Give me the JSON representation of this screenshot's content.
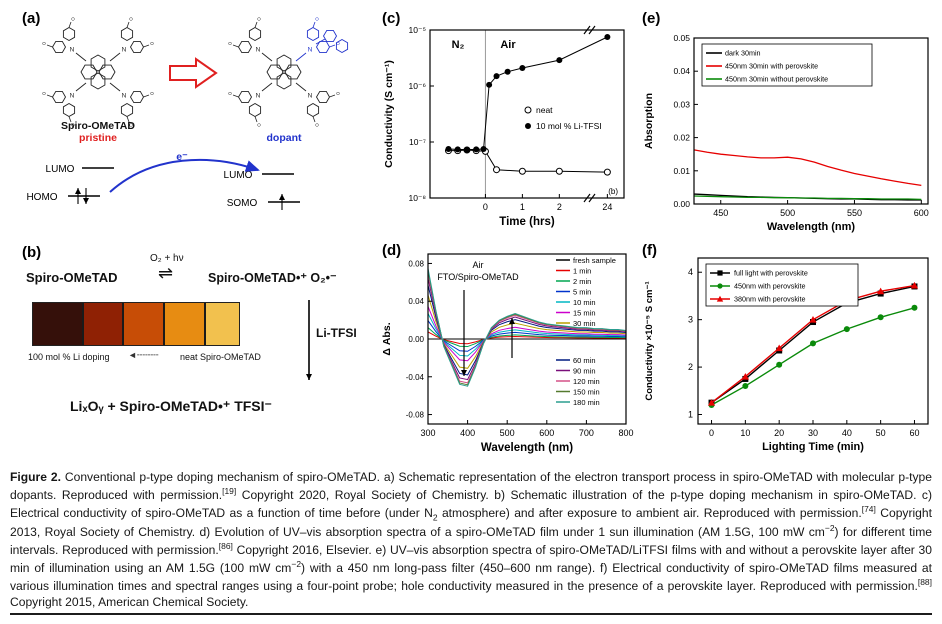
{
  "panels": {
    "a": {
      "label": "(a)",
      "molecule_name": "Spiro-OMeTAD",
      "pristine": "pristine",
      "dopant": "dopant",
      "electron": "e⁻",
      "lumo_left": "LUMO",
      "homo": "HOMO",
      "lumo_right": "LUMO",
      "somo": "SOMO"
    },
    "b": {
      "label": "(b)",
      "reactant": "Spiro-OMeTAD",
      "arrow_top": "O₂ + hν",
      "equilibrium": "⇌",
      "product": "Spiro-OMeTAD•⁺  O₂•⁻",
      "film_label_left": "100 mol % Li doping",
      "film_arrow": "◄╌╌╌╌",
      "film_label_right": "neat  Spiro-OMeTAD",
      "film_colors": [
        "#35100a",
        "#8f2104",
        "#c74d06",
        "#e78c12",
        "#f2c14e"
      ],
      "side_arrow_label": "Li-TFSI",
      "bottom_equation": "LiₓOᵧ  +  Spiro-OMeTAD•⁺ TFSI⁻"
    },
    "c": {
      "label": "(c)"
    },
    "d": {
      "label": "(d)"
    },
    "e": {
      "label": "(e)"
    },
    "f": {
      "label": "(f)"
    }
  },
  "chart_data": [
    {
      "id": "c",
      "type": "scatter-line",
      "xlabel": "Time (hrs)",
      "ylabel": "Conductivity (S cm⁻¹)",
      "yscale": "log",
      "ylim": [
        1e-08,
        1e-05
      ],
      "ytick_labels": [
        "10⁻⁸",
        "10⁻⁷",
        "10⁻⁶",
        "10⁻⁵"
      ],
      "xticks": [
        0,
        1,
        2,
        24
      ],
      "axis_break_after": 2,
      "region_labels": {
        "left": "N₂",
        "right": "Air"
      },
      "corner_label": "(b)",
      "series": [
        {
          "name": "neat",
          "marker": "circle-open",
          "color": "#000000",
          "x": [
            -1,
            -0.75,
            -0.5,
            -0.25,
            0,
            0.3,
            1,
            2,
            24
          ],
          "y": [
            7e-08,
            7e-08,
            7.2e-08,
            7e-08,
            6.8e-08,
            3.2e-08,
            3e-08,
            3e-08,
            2.9e-08
          ]
        },
        {
          "name": "10 mol % Li-TFSI",
          "marker": "circle-filled",
          "color": "#000000",
          "x": [
            -1,
            -0.75,
            -0.5,
            -0.25,
            -0.05,
            0.1,
            0.3,
            0.6,
            1,
            2,
            24
          ],
          "y": [
            7.5e-08,
            7.4e-08,
            7.3e-08,
            7.4e-08,
            7.5e-08,
            1.05e-06,
            1.5e-06,
            1.8e-06,
            2.1e-06,
            2.9e-06,
            7.5e-06
          ]
        }
      ]
    },
    {
      "id": "d",
      "type": "line",
      "annotation_air": "Air",
      "annotation_sample": "FTO/Spiro-OMeTAD",
      "xlabel": "Wavelength (nm)",
      "ylabel": "Δ Abs.",
      "xlim": [
        300,
        800
      ],
      "ylim": [
        -0.09,
        0.09
      ],
      "xticks": [
        300,
        400,
        500,
        600,
        700,
        800
      ],
      "yticks": [
        -0.08,
        -0.04,
        0,
        0.04,
        0.08
      ],
      "values_note": "series values = scale × base_curve at each wavelength",
      "wavelengths": [
        300,
        320,
        340,
        360,
        380,
        400,
        420,
        440,
        460,
        480,
        500,
        520,
        540,
        560,
        580,
        600,
        620,
        640,
        660,
        680,
        700,
        720,
        740,
        760,
        780,
        800
      ],
      "base_curve": [
        0.075,
        0.03,
        -0.008,
        -0.028,
        -0.048,
        -0.05,
        -0.03,
        -0.005,
        0.012,
        0.02,
        0.024,
        0.027,
        0.024,
        0.021,
        0.018,
        0.016,
        0.015,
        0.014,
        0.013,
        0.012,
        0.012,
        0.011,
        0.011,
        0.01,
        0.01,
        0.009
      ],
      "series": [
        {
          "name": "fresh sample",
          "color": "#000000",
          "scale": 0.0
        },
        {
          "name": "1 min",
          "color": "#e60000",
          "scale": 0.1
        },
        {
          "name": "2 min",
          "color": "#00a650",
          "scale": 0.16
        },
        {
          "name": "5 min",
          "color": "#0033cc",
          "scale": 0.26
        },
        {
          "name": "10 min",
          "color": "#00b7c3",
          "scale": 0.36
        },
        {
          "name": "15 min",
          "color": "#cc00cc",
          "scale": 0.46
        },
        {
          "name": "30 min",
          "color": "#b8a000",
          "scale": 0.62
        },
        {
          "name": "60 min",
          "color": "#001a80",
          "scale": 0.76
        },
        {
          "name": "90 min",
          "color": "#7a0f7a",
          "scale": 0.86
        },
        {
          "name": "120 min",
          "color": "#d45087",
          "scale": 0.93
        },
        {
          "name": "150 min",
          "color": "#557a2e",
          "scale": 0.97
        },
        {
          "name": "180 min",
          "color": "#2a9d8f",
          "scale": 1.0
        }
      ]
    },
    {
      "id": "e",
      "type": "line",
      "xlabel": "Wavelength (nm)",
      "ylabel": "Absorption",
      "xlim": [
        430,
        605
      ],
      "ylim": [
        0,
        0.05
      ],
      "xticks": [
        450,
        500,
        550,
        600
      ],
      "yticks": [
        0,
        0.01,
        0.02,
        0.03,
        0.04,
        0.05
      ],
      "x": [
        430,
        440,
        450,
        460,
        470,
        480,
        490,
        500,
        510,
        520,
        530,
        540,
        550,
        560,
        570,
        580,
        590,
        600
      ],
      "series": [
        {
          "name": "dark 30min",
          "color": "#000000",
          "values": [
            0.003,
            0.0028,
            0.0026,
            0.0024,
            0.0022,
            0.0021,
            0.002,
            0.0019,
            0.0018,
            0.0017,
            0.0016,
            0.0015,
            0.0015,
            0.0014,
            0.0013,
            0.0013,
            0.0012,
            0.0012
          ]
        },
        {
          "name": "450nm 30min with perovskite",
          "color": "#e60000",
          "values": [
            0.0163,
            0.0156,
            0.015,
            0.0146,
            0.0142,
            0.0139,
            0.0139,
            0.0141,
            0.0136,
            0.0126,
            0.0113,
            0.0102,
            0.0092,
            0.0084,
            0.0076,
            0.0069,
            0.0062,
            0.0056
          ]
        },
        {
          "name": "450nm 30min without perovskite",
          "color": "#0a8a0a",
          "values": [
            0.0024,
            0.0023,
            0.0022,
            0.0021,
            0.002,
            0.002,
            0.0019,
            0.0019,
            0.0018,
            0.0018,
            0.0017,
            0.0017,
            0.0016,
            0.0016,
            0.0015,
            0.0015,
            0.0015,
            0.0014
          ]
        }
      ]
    },
    {
      "id": "f",
      "type": "scatter-line",
      "xlabel": "Lighting Time (min)",
      "ylabel": "Conductivity ×10⁻⁵ S cm⁻¹",
      "xlim": [
        -4,
        64
      ],
      "ylim": [
        0.8,
        4.3
      ],
      "xticks": [
        0,
        10,
        20,
        30,
        40,
        50,
        60
      ],
      "yticks": [
        1,
        2,
        3,
        4
      ],
      "x": [
        0,
        10,
        20,
        30,
        40,
        50,
        60
      ],
      "series": [
        {
          "name": "full light with perovskite",
          "color": "#000000",
          "marker": "square",
          "values": [
            1.25,
            1.75,
            2.35,
            2.95,
            3.35,
            3.55,
            3.7
          ]
        },
        {
          "name": "450nm with perovskite",
          "color": "#0a8a0a",
          "marker": "circle",
          "values": [
            1.2,
            1.6,
            2.05,
            2.5,
            2.8,
            3.05,
            3.25
          ]
        },
        {
          "name": "380nm with perovskite",
          "color": "#e60000",
          "marker": "triangle",
          "values": [
            1.25,
            1.8,
            2.4,
            3.0,
            3.4,
            3.6,
            3.72
          ]
        }
      ]
    }
  ],
  "caption": {
    "runs": [
      {
        "t": "Figure 2.",
        "b": true
      },
      {
        "t": "  Conventional p-type doping mechanism of spiro-OMeTAD. a) Schematic representation of the electron transport process in spiro-OMeTAD with molecular p-type dopants. Reproduced with permission."
      },
      {
        "sup": "[19]"
      },
      {
        "t": " Copyright 2020, Royal Society of Chemistry. b) Schematic illustration of the p-type doping mechanism in spiro-OMeTAD. c) Electrical conductivity of spiro-OMeTAD as a function of time before (under N"
      },
      {
        "sub": "2"
      },
      {
        "t": " atmosphere) and after exposure to ambient air. Reproduced with permission."
      },
      {
        "sup": "[74]"
      },
      {
        "t": " Copyright 2013, Royal Society of Chemistry. d) Evolution of UV–vis absorption spectra of a spiro-OMeTAD film under 1 sun illumination (AM 1.5G, 100 mW cm"
      },
      {
        "sup": "−2"
      },
      {
        "t": ") for different time intervals. Reproduced with permission."
      },
      {
        "sup": "[86]"
      },
      {
        "t": " Copyright 2016, Elsevier. e) UV–vis absorption spectra of spiro-OMeTAD/LiTFSI films with and without a perovskite layer after 30 min of illumination using an AM 1.5G (100 mW cm"
      },
      {
        "sup": "−2"
      },
      {
        "t": ") with a 450 nm long-pass filter (450–600 nm range). f) Electrical conductivity of spiro-OMeTAD films measured at various illumination times and spectral ranges using a four-point probe; hole conductivity measured in the presence of a perovskite layer. Reproduced with permission."
      },
      {
        "sup": "[88]"
      },
      {
        "t": " Copyright 2015, American Chemical Society."
      }
    ]
  },
  "colors": {
    "pristine_red": "#e02020",
    "dopant_blue": "#2233cc"
  }
}
